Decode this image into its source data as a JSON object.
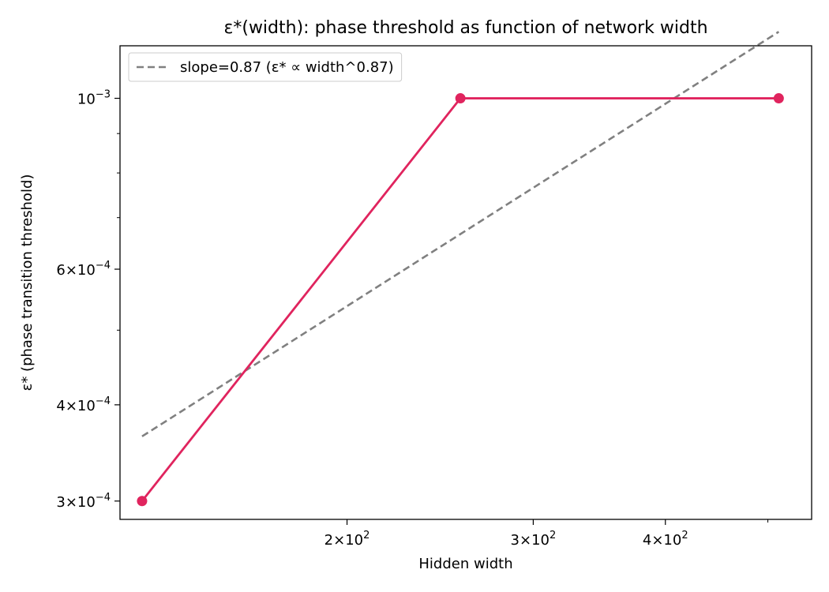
{
  "chart_data": {
    "type": "line",
    "title": "ε*(width): phase threshold as function of network width",
    "xlabel": "Hidden width",
    "ylabel": "ε* (phase transition threshold)",
    "xscale": "log",
    "yscale": "log",
    "xlim": [
      122,
      550
    ],
    "ylim": [
      0.000284,
      0.00117
    ],
    "grid": false,
    "legend_position": "top-left",
    "x_ticks": [
      {
        "value": 200,
        "label": "2×10^2",
        "mantissa": "2",
        "base": "10",
        "exp": "2"
      },
      {
        "value": 300,
        "label": "3×10^2",
        "mantissa": "3",
        "base": "10",
        "exp": "2"
      },
      {
        "value": 400,
        "label": "4×10^2",
        "mantissa": "4",
        "base": "10",
        "exp": "2"
      }
    ],
    "x_minor_ticks": [
      500
    ],
    "y_ticks": [
      {
        "value": 0.0003,
        "label": "3×10^-4",
        "mantissa": "3",
        "base": "10",
        "exp": "−4"
      },
      {
        "value": 0.0004,
        "label": "4×10^-4",
        "mantissa": "4",
        "base": "10",
        "exp": "−4"
      },
      {
        "value": 0.0006,
        "label": "6×10^-4",
        "mantissa": "6",
        "base": "10",
        "exp": "−4"
      },
      {
        "value": 0.001,
        "label": "10^-3",
        "mantissa": "",
        "base": "10",
        "exp": "−3"
      }
    ],
    "y_minor_ticks": [
      0.0005,
      0.0007,
      0.0008,
      0.0009
    ],
    "series": [
      {
        "name": "",
        "color": "#e0245e",
        "style": "solid",
        "marker": "circle",
        "x": [
          128,
          256,
          512
        ],
        "y": [
          0.0003,
          0.001,
          0.001
        ]
      },
      {
        "name": "slope=0.87 (ε* ∝ width^0.87)",
        "color": "#808080",
        "style": "dashed",
        "marker": "none",
        "x": [
          128,
          512
        ],
        "y": [
          0.000364,
          0.00122
        ]
      }
    ]
  }
}
